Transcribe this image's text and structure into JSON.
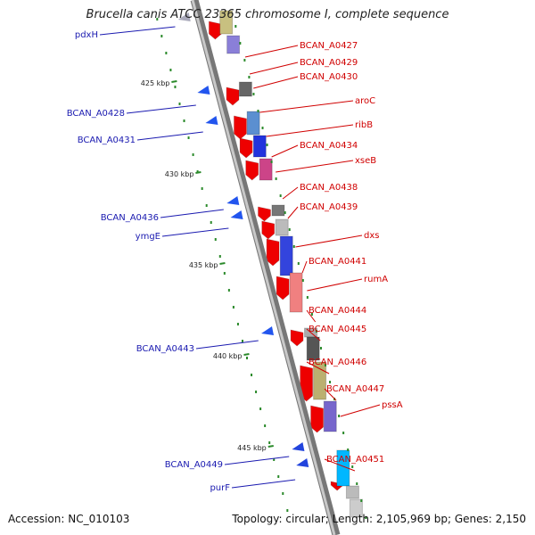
{
  "title": "Brucella canis ATCC 23365 chromosome I, complete sequence",
  "accession_text": "Accession: NC_010103",
  "topology_text": "Topology: circular; Length: 2,105,969 bp; Genes: 2,150",
  "colors": {
    "backbone": "#999999",
    "forward_label": "#d00000",
    "reverse_label": "#1a1ab0",
    "tick": "#2b8a2b",
    "gene_arrow": "#ee0000"
  },
  "scale_labels": [
    "425 kbp",
    "430 kbp",
    "435 kbp",
    "440 kbp",
    "445 kbp"
  ],
  "forward_genes": [
    "BCAN_A0427",
    "BCAN_A0429",
    "BCAN_A0430",
    "aroC",
    "ribB",
    "BCAN_A0434",
    "xseB",
    "BCAN_A0438",
    "BCAN_A0439",
    "dxs",
    "BCAN_A0441",
    "rumA",
    "BCAN_A0444",
    "BCAN_A0445",
    "BCAN_A0446",
    "BCAN_A0447",
    "pssA",
    "BCAN_A0451"
  ],
  "reverse_genes": [
    "pdxH",
    "BCAN_A0428",
    "BCAN_A0431",
    "BCAN_A0436",
    "ymgE",
    "BCAN_A0443",
    "BCAN_A0449",
    "purF"
  ]
}
